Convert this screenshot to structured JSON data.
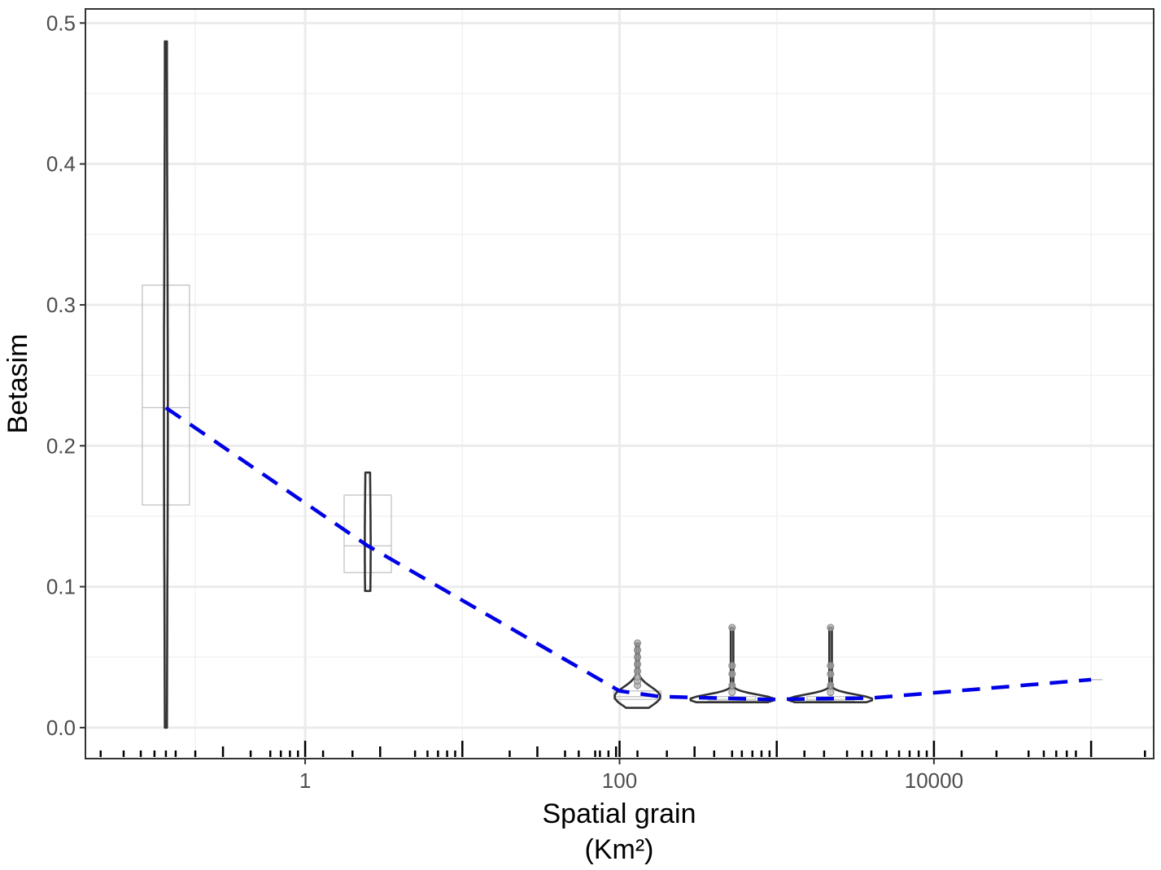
{
  "chart_data": {
    "type": "violin",
    "xlabel": "Spatial grain",
    "xlabel_unit": "(Km²)",
    "ylabel": "Betasim",
    "x_scale": "log10",
    "xlim": [
      0.04,
      250000
    ],
    "ylim": [
      -0.022,
      0.51
    ],
    "grid": true,
    "x_ticks": [
      {
        "value": 1,
        "label": "1"
      },
      {
        "value": 100,
        "label": "100"
      },
      {
        "value": 10000,
        "label": "10000"
      }
    ],
    "y_ticks": [
      {
        "value": 0.0,
        "label": "0.0"
      },
      {
        "value": 0.1,
        "label": "0.1"
      },
      {
        "value": 0.2,
        "label": "0.2"
      },
      {
        "value": 0.3,
        "label": "0.3"
      },
      {
        "value": 0.4,
        "label": "0.4"
      },
      {
        "value": 0.5,
        "label": "0.5"
      }
    ],
    "groups": [
      {
        "grain": 0.13,
        "min": 0.0,
        "q1": 0.158,
        "median": 0.227,
        "q3": 0.314,
        "max": 0.487,
        "shape": "thin",
        "outliers": []
      },
      {
        "grain": 2.5,
        "min": 0.097,
        "q1": 0.11,
        "median": 0.129,
        "q3": 0.165,
        "max": 0.181,
        "shape": "thin",
        "outliers": []
      },
      {
        "grain": 130,
        "min": 0.014,
        "q1": 0.02,
        "median": 0.022,
        "q3": 0.026,
        "max": 0.06,
        "shape": "wide",
        "outliers": [
          0.03,
          0.033,
          0.036,
          0.04,
          0.045,
          0.05,
          0.055,
          0.06
        ]
      },
      {
        "grain": 520,
        "min": 0.018,
        "q1": 0.019,
        "median": 0.02,
        "q3": 0.022,
        "max": 0.071,
        "shape": "wide",
        "outliers": [
          0.025,
          0.03,
          0.038,
          0.044,
          0.071
        ]
      },
      {
        "grain": 2200,
        "min": 0.018,
        "q1": 0.019,
        "median": 0.02,
        "q3": 0.022,
        "max": 0.071,
        "shape": "wide",
        "outliers": [
          0.025,
          0.03,
          0.038,
          0.044,
          0.071
        ]
      }
    ],
    "trend_line": {
      "color": "#0000e6",
      "style": "dashed",
      "x": [
        0.13,
        2.5,
        100,
        180,
        900,
        4000,
        100000
      ],
      "y": [
        0.227,
        0.129,
        0.026,
        0.022,
        0.02,
        0.021,
        0.034
      ]
    },
    "rug_x": [
      0.05,
      0.07,
      0.09,
      0.11,
      0.13,
      0.15,
      0.2,
      0.3,
      0.45,
      0.6,
      0.7,
      0.8,
      0.9,
      1.0,
      1.3,
      2,
      3,
      5,
      6,
      7,
      8,
      9,
      10,
      20,
      30,
      45,
      55,
      70,
      75,
      85,
      95,
      100,
      130,
      200,
      300,
      400,
      520,
      600,
      700,
      800,
      900,
      1000,
      1500,
      2000,
      2800,
      3500,
      4000,
      5000,
      6000,
      7000,
      8000,
      9000,
      10000,
      15000,
      25000,
      40000,
      50000,
      60000,
      70000,
      80000,
      100000,
      220000
    ],
    "colors": {
      "trend": "#0000e6",
      "violin": "#333333",
      "box": "#bdbdbd",
      "outlier": "#9e9e9e",
      "grid": "#ebebeb",
      "panel_border": "#333333"
    }
  }
}
